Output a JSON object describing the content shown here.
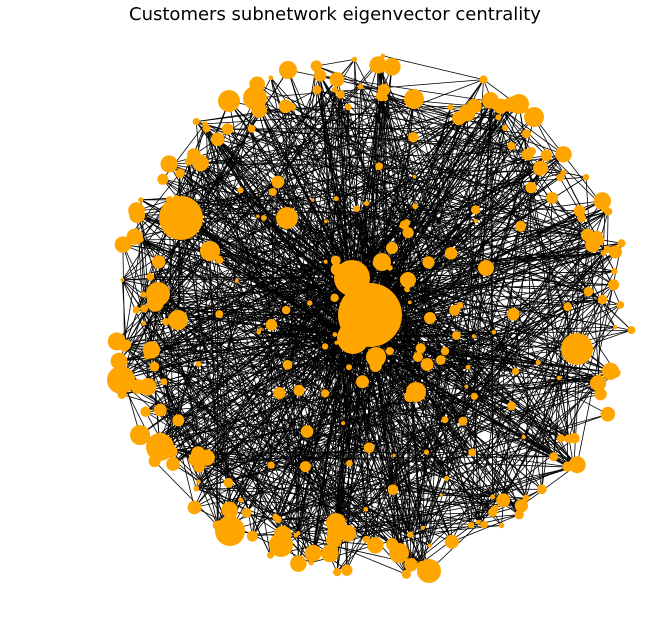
{
  "title": "Customers subnetwork eigenvector centrality",
  "colors": {
    "node": "#ffa500",
    "edge": "#000000",
    "background": "#ffffff"
  }
}
